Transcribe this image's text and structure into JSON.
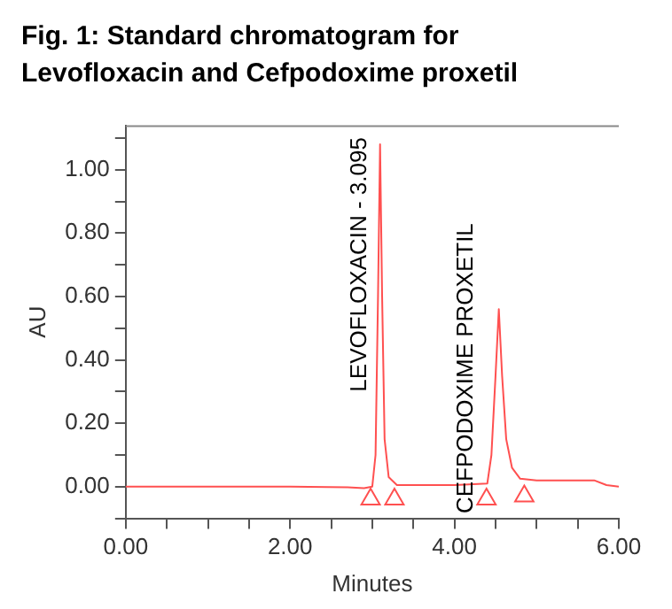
{
  "chart_data": {
    "type": "line",
    "title": "Fig. 1: Standard chromatogram for Levofloxacin and Cefpodoxime proxetil",
    "xlabel": "Minutes",
    "ylabel": "AU",
    "xlim": [
      0,
      6
    ],
    "ylim": [
      -0.1,
      1.14
    ],
    "xticks": [
      {
        "value": 0,
        "label": "0.00"
      },
      {
        "value": 0.5,
        "label": null
      },
      {
        "value": 1,
        "label": null
      },
      {
        "value": 1.5,
        "label": null
      },
      {
        "value": 2,
        "label": "2.00"
      },
      {
        "value": 2.5,
        "label": null
      },
      {
        "value": 3,
        "label": null
      },
      {
        "value": 3.5,
        "label": null
      },
      {
        "value": 4,
        "label": "4.00"
      },
      {
        "value": 4.5,
        "label": null
      },
      {
        "value": 5,
        "label": null
      },
      {
        "value": 5.5,
        "label": null
      },
      {
        "value": 6,
        "label": "6.00"
      }
    ],
    "yticks": [
      {
        "value": -0.1,
        "label": null
      },
      {
        "value": 0,
        "label": "0.00"
      },
      {
        "value": 0.1,
        "label": null
      },
      {
        "value": 0.2,
        "label": "0.20"
      },
      {
        "value": 0.3,
        "label": null
      },
      {
        "value": 0.4,
        "label": "0.40"
      },
      {
        "value": 0.5,
        "label": null
      },
      {
        "value": 0.6,
        "label": "0.60"
      },
      {
        "value": 0.7,
        "label": null
      },
      {
        "value": 0.8,
        "label": "0.80"
      },
      {
        "value": 0.9,
        "label": null
      },
      {
        "value": 1,
        "label": "1.00"
      },
      {
        "value": 1.1,
        "label": null
      }
    ],
    "grid": false,
    "legend": false,
    "series": [
      {
        "type": "line",
        "color": "#ff5050",
        "marker": "none",
        "x": [
          0,
          2,
          2.7,
          2.9,
          3.0,
          3.04,
          3.07,
          3.095,
          3.12,
          3.15,
          3.2,
          3.3,
          4.0,
          4.4,
          4.45,
          4.5,
          4.54,
          4.58,
          4.63,
          4.7,
          4.8,
          5.0,
          5.7,
          5.85,
          6.0
        ],
        "values": [
          0,
          0,
          -0.002,
          -0.005,
          0,
          0.1,
          0.6,
          1.08,
          0.6,
          0.15,
          0.03,
          0.005,
          0.005,
          0.01,
          0.1,
          0.35,
          0.56,
          0.35,
          0.15,
          0.06,
          0.025,
          0.02,
          0.02,
          0.005,
          0
        ]
      },
      {
        "type": "scatter",
        "color": "#ff5050",
        "marker": "triangle",
        "x": [
          2.98,
          3.27,
          4.39,
          4.85
        ],
        "values": [
          -0.04,
          -0.04,
          -0.04,
          -0.03
        ]
      }
    ],
    "annotations": [
      {
        "text": "LEVOFLOXACIN - 3.095",
        "x": 3.095,
        "y": 1.08
      },
      {
        "text": "CEFPODOXIME PROXETIL",
        "x": 4.39,
        "y": -0.04
      }
    ]
  }
}
